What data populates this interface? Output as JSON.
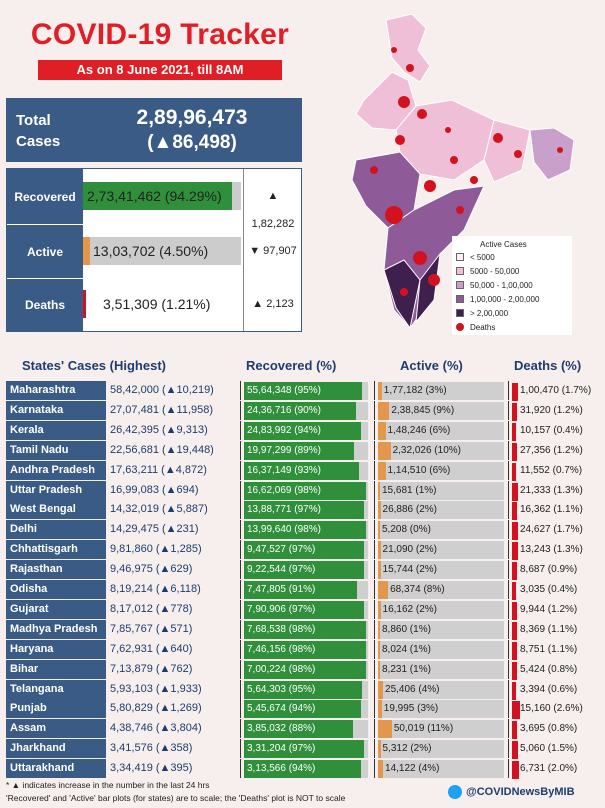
{
  "header": {
    "title": "COVID-19 Tracker",
    "subtitle": "As on 8 June 2021, till 8AM"
  },
  "total": {
    "label": "Total Cases",
    "value": "2,89,96,473",
    "change": "(▲86,498)"
  },
  "summary": [
    {
      "label": "Recovered",
      "value": "2,73,41,462 (94.29%)",
      "percent": 94.29,
      "change": "▲ 1,82,282",
      "color": "#2f8f3a"
    },
    {
      "label": "Active",
      "value": "13,03,702 (4.50%)",
      "percent": 4.5,
      "change": "▼ 97,907",
      "color": "#e2974c"
    },
    {
      "label": "Deaths",
      "value": "3,51,309 (1.21%)",
      "percent": 1.21,
      "change": "▲ 2,123",
      "color": "#d3121f"
    }
  ],
  "legend": {
    "title": "Active Cases",
    "items": [
      {
        "label": "< 5000",
        "color": "#fbeef4"
      },
      {
        "label": "5000 - 50,000",
        "color": "#efbfd7"
      },
      {
        "label": "50,000 - 1,00,000",
        "color": "#c9a0c9"
      },
      {
        "label": "1,00,000 - 2,00,000",
        "color": "#8e5b98"
      },
      {
        "label": "> 2,00,000",
        "color": "#3e1f4e"
      },
      {
        "label": "Deaths",
        "color": "#d3121f"
      }
    ]
  },
  "table": {
    "headers": {
      "states": "States' Cases (Highest)",
      "recovered": "Recovered (%)",
      "active": "Active (%)",
      "deaths": "Deaths (%)"
    },
    "rows": [
      {
        "state": "Maharashtra",
        "cases": "58,42,000 (▲10,219)",
        "recovered": "55,64,348 (95%)",
        "rec_pct": 95,
        "active": "1,77,182 (3%)",
        "act_pct": 3,
        "deaths": "1,00,470 (1.7%)"
      },
      {
        "state": "Karnataka",
        "cases": "27,07,481 (▲11,958)",
        "recovered": "24,36,716 (90%)",
        "rec_pct": 90,
        "active": "2,38,845 (9%)",
        "act_pct": 9,
        "deaths": "31,920 (1.2%)"
      },
      {
        "state": "Kerala",
        "cases": "26,42,395 (▲9,313)",
        "recovered": "24,83,992 (94%)",
        "rec_pct": 94,
        "active": "1,48,246 (6%)",
        "act_pct": 6,
        "deaths": "10,157 (0.4%)"
      },
      {
        "state": "Tamil Nadu",
        "cases": "22,56,681 (▲19,448)",
        "recovered": "19,97,299 (89%)",
        "rec_pct": 89,
        "active": "2,32,026 (10%)",
        "act_pct": 10,
        "deaths": "27,356 (1.2%)"
      },
      {
        "state": "Andhra Pradesh",
        "cases": "17,63,211 (▲4,872)",
        "recovered": "16,37,149 (93%)",
        "rec_pct": 93,
        "active": "1,14,510 (6%)",
        "act_pct": 6,
        "deaths": "11,552 (0.7%)"
      },
      {
        "state": "Uttar Pradesh",
        "cases": "16,99,083 (▲694)",
        "recovered": "16,62,069 (98%)",
        "rec_pct": 98,
        "active": "15,681 (1%)",
        "act_pct": 1,
        "deaths": "21,333 (1.3%)"
      },
      {
        "state": "West Bengal",
        "cases": "14,32,019 (▲5,887)",
        "recovered": "13,88,771 (97%)",
        "rec_pct": 97,
        "active": "26,886 (2%)",
        "act_pct": 2,
        "deaths": "16,362 (1.1%)"
      },
      {
        "state": "Delhi",
        "cases": "14,29,475 (▲231)",
        "recovered": "13,99,640 (98%)",
        "rec_pct": 98,
        "active": "5,208 (0%)",
        "act_pct": 0,
        "deaths": "24,627 (1.7%)"
      },
      {
        "state": "Chhattisgarh",
        "cases": "9,81,860 (▲1,285)",
        "recovered": "9,47,527 (97%)",
        "rec_pct": 97,
        "active": "21,090 (2%)",
        "act_pct": 2,
        "deaths": "13,243 (1.3%)"
      },
      {
        "state": "Rajasthan",
        "cases": "9,46,975 (▲629)",
        "recovered": "9,22,544 (97%)",
        "rec_pct": 97,
        "active": "15,744 (2%)",
        "act_pct": 2,
        "deaths": "8,687 (0.9%)"
      },
      {
        "state": "Odisha",
        "cases": "8,19,214 (▲6,118)",
        "recovered": "7,47,805 (91%)",
        "rec_pct": 91,
        "active": "68,374 (8%)",
        "act_pct": 8,
        "deaths": "3,035 (0.4%)"
      },
      {
        "state": "Gujarat",
        "cases": "8,17,012 (▲778)",
        "recovered": "7,90,906 (97%)",
        "rec_pct": 97,
        "active": "16,162 (2%)",
        "act_pct": 2,
        "deaths": "9,944 (1.2%)"
      },
      {
        "state": "Madhya Pradesh",
        "cases": "7,85,767 (▲571)",
        "recovered": "7,68,538 (98%)",
        "rec_pct": 98,
        "active": "8,860 (1%)",
        "act_pct": 1,
        "deaths": "8,369 (1.1%)"
      },
      {
        "state": "Haryana",
        "cases": "7,62,931 (▲640)",
        "recovered": "7,46,156 (98%)",
        "rec_pct": 98,
        "active": "8,024 (1%)",
        "act_pct": 1,
        "deaths": "8,751 (1.1%)"
      },
      {
        "state": "Bihar",
        "cases": "7,13,879 (▲762)",
        "recovered": "7,00,224 (98%)",
        "rec_pct": 98,
        "active": "8,231 (1%)",
        "act_pct": 1,
        "deaths": "5,424 (0.8%)"
      },
      {
        "state": "Telangana",
        "cases": "5,93,103 (▲1,933)",
        "recovered": "5,64,303 (95%)",
        "rec_pct": 95,
        "active": "25,406 (4%)",
        "act_pct": 4,
        "deaths": "3,394 (0.6%)"
      },
      {
        "state": "Punjab",
        "cases": "5,80,829 (▲1,269)",
        "recovered": "5,45,674 (94%)",
        "rec_pct": 94,
        "active": "19,995 (3%)",
        "act_pct": 3,
        "deaths": "15,160 (2.6%)"
      },
      {
        "state": "Assam",
        "cases": "4,38,746 (▲3,804)",
        "recovered": "3,85,032 (88%)",
        "rec_pct": 88,
        "active": "50,019 (11%)",
        "act_pct": 11,
        "deaths": "3,695 (0.8%)"
      },
      {
        "state": "Jharkhand",
        "cases": "3,41,576 (▲358)",
        "recovered": "3,31,204 (97%)",
        "rec_pct": 97,
        "active": "5,312 (2%)",
        "act_pct": 2,
        "deaths": "5,060 (1.5%)"
      },
      {
        "state": "Uttarakhand",
        "cases": "3,34,419 (▲395)",
        "recovered": "3,13,566 (94%)",
        "rec_pct": 94,
        "active": "14,122 (4%)",
        "act_pct": 4,
        "deaths": "6,731 (2.0%)"
      }
    ]
  },
  "footer": {
    "note1": "* ▲ indicates increase in the number in the last 24 hrs",
    "note2": "'Recovered' and 'Active' bar plots (for states) are to scale; the 'Deaths' plot is NOT to scale",
    "handle": "@COVIDNewsByMIB"
  },
  "colors": {
    "header_blue": "#3a5b85",
    "title_red": "#e01e25",
    "recovered": "#2f8f3a",
    "active": "#e2974c",
    "deaths": "#d3121f"
  }
}
